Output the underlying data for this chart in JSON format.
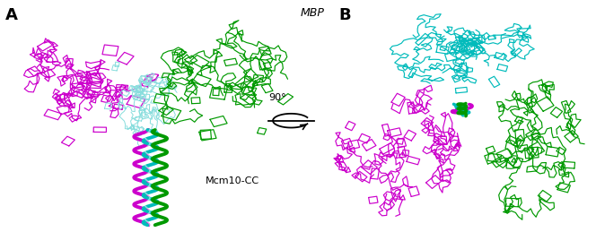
{
  "panel_a_label": "A",
  "panel_b_label": "B",
  "mbp_label": "MBP",
  "cc_label": "Mcm10-CC",
  "rotation_label": "90°",
  "colors": {
    "magenta": "#CC00CC",
    "cyan": "#00BBBB",
    "green": "#009900",
    "light_cyan": "#88DDDD",
    "white": "#FFFFFF",
    "black": "#000000",
    "gray": "#AAAAAA"
  },
  "background": "#FFFFFF",
  "figsize": [
    6.64,
    2.59
  ],
  "dpi": 100
}
